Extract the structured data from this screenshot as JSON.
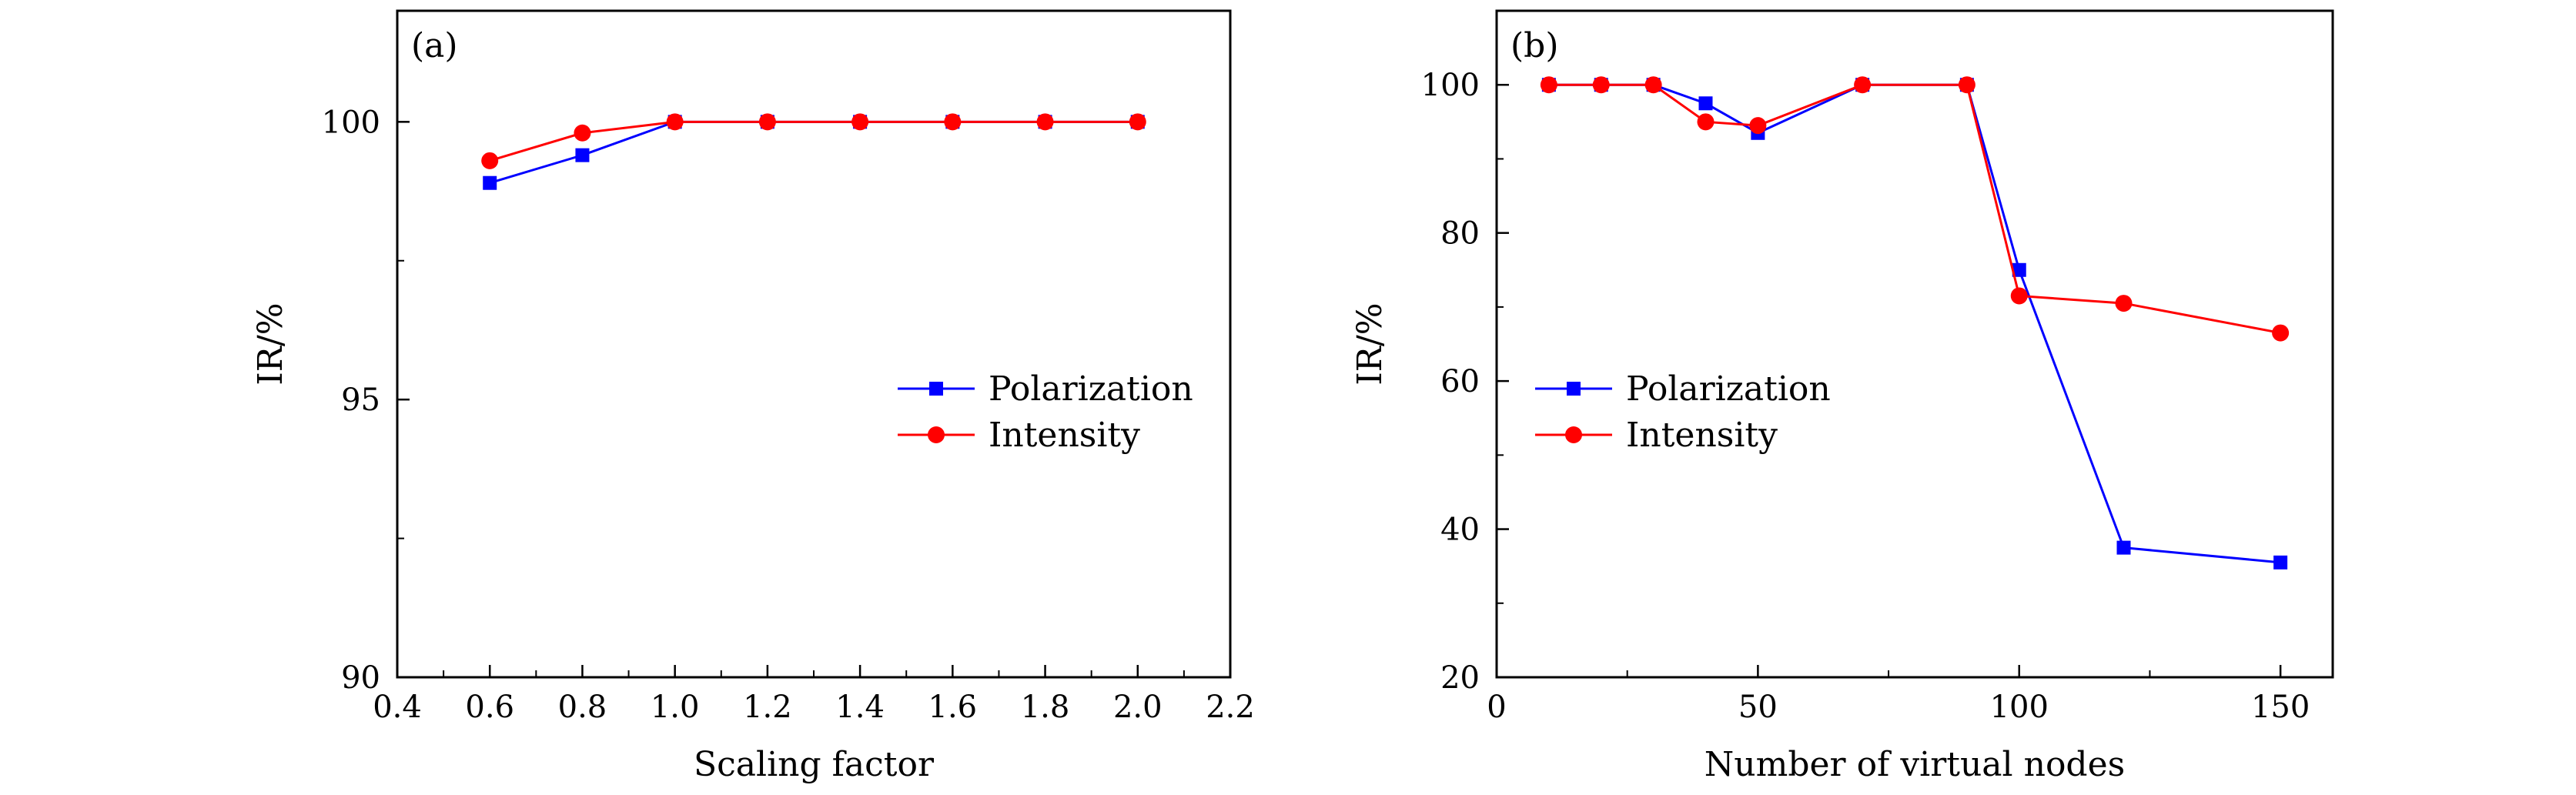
{
  "chart_data": [
    {
      "type": "line",
      "panel_label": "(a)",
      "xlabel": "Scaling factor",
      "ylabel": "IR/%",
      "xlim": [
        0.4,
        2.2
      ],
      "ylim": [
        90,
        102
      ],
      "x_ticks": [
        0.4,
        0.6,
        0.8,
        1.0,
        1.2,
        1.4,
        1.6,
        1.8,
        2.0,
        2.2
      ],
      "x_tick_labels": [
        "0.4",
        "0.6",
        "0.8",
        "1.0",
        "1.2",
        "1.4",
        "1.6",
        "1.8",
        "2.0",
        "2.2"
      ],
      "y_ticks": [
        90,
        95,
        100
      ],
      "y_tick_labels": [
        "90",
        "95",
        "100"
      ],
      "legend_position": "center-right",
      "grid": false,
      "series": [
        {
          "name": "Polarization",
          "color": "#0000ff",
          "marker": "square",
          "x": [
            0.6,
            0.8,
            1.0,
            1.2,
            1.4,
            1.6,
            1.8,
            2.0
          ],
          "y": [
            98.9,
            99.4,
            100,
            100,
            100,
            100,
            100,
            100
          ]
        },
        {
          "name": "Intensity",
          "color": "#ff0000",
          "marker": "circle",
          "x": [
            0.6,
            0.8,
            1.0,
            1.2,
            1.4,
            1.6,
            1.8,
            2.0
          ],
          "y": [
            99.3,
            99.8,
            100,
            100,
            100,
            100,
            100,
            100
          ]
        }
      ]
    },
    {
      "type": "line",
      "panel_label": "(b)",
      "xlabel": "Number of virtual nodes",
      "ylabel": "IR/%",
      "xlim": [
        0,
        160
      ],
      "ylim": [
        20,
        110
      ],
      "x_ticks": [
        0,
        50,
        100,
        150
      ],
      "x_tick_labels": [
        "0",
        "50",
        "100",
        "150"
      ],
      "y_ticks": [
        20,
        40,
        60,
        80,
        100
      ],
      "y_tick_labels": [
        "20",
        "40",
        "60",
        "80",
        "100"
      ],
      "legend_position": "center-left",
      "grid": false,
      "series": [
        {
          "name": "Polarization",
          "color": "#0000ff",
          "marker": "square",
          "x": [
            10,
            20,
            30,
            40,
            50,
            70,
            90,
            100,
            120,
            150
          ],
          "y": [
            100,
            100,
            100,
            97.5,
            93.5,
            100,
            100,
            75,
            37.5,
            35.5
          ]
        },
        {
          "name": "Intensity",
          "color": "#ff0000",
          "marker": "circle",
          "x": [
            10,
            20,
            30,
            40,
            50,
            70,
            90,
            100,
            120,
            150
          ],
          "y": [
            100,
            100,
            100,
            95,
            94.5,
            100,
            100,
            71.5,
            70.5,
            66.5
          ]
        }
      ]
    }
  ]
}
